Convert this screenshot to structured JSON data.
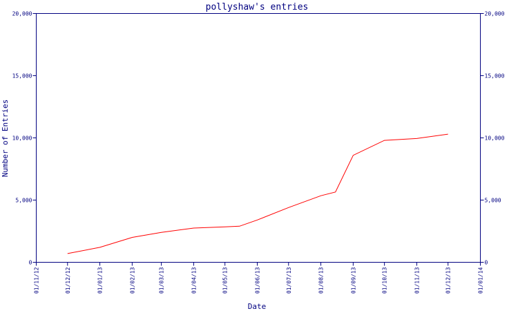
{
  "chart_data": {
    "type": "line",
    "title": "pollyshaw's entries",
    "xlabel": "Date",
    "ylabel": "Number of Entries",
    "ylim": [
      0,
      20000
    ],
    "y_ticks": [
      "0",
      "5,000",
      "10,000",
      "15,000",
      "20,000"
    ],
    "y_tick_values": [
      0,
      5000,
      10000,
      15000,
      20000
    ],
    "x_ticks": [
      "01/11/12",
      "01/12/12",
      "01/01/13",
      "01/02/13",
      "01/03/13",
      "01/04/13",
      "01/05/13",
      "01/06/13",
      "01/07/13",
      "01/08/13",
      "01/09/13",
      "01/10/13",
      "01/11/13",
      "01/12/13",
      "01/01/14"
    ],
    "x_tick_dates": [
      "2012-11-01",
      "2012-12-01",
      "2013-01-01",
      "2013-02-01",
      "2013-03-01",
      "2013-04-01",
      "2013-05-01",
      "2013-06-01",
      "2013-07-01",
      "2013-08-01",
      "2013-09-01",
      "2013-10-01",
      "2013-11-01",
      "2013-12-01",
      "2014-01-01"
    ],
    "xlim": [
      "2012-11-01",
      "2014-01-01"
    ],
    "grid": false,
    "series": [
      {
        "color": "#ff0000",
        "x": [
          "2012-12-01",
          "2013-01-01",
          "2013-02-01",
          "2013-03-01",
          "2013-04-01",
          "2013-05-01",
          "2013-05-15",
          "2013-06-01",
          "2013-07-01",
          "2013-08-01",
          "2013-08-15",
          "2013-09-01",
          "2013-10-01",
          "2013-11-01",
          "2013-12-01"
        ],
        "y": [
          700,
          1200,
          2000,
          2400,
          2750,
          2850,
          2900,
          3400,
          4400,
          5350,
          5650,
          8600,
          9800,
          9950,
          10300
        ]
      }
    ]
  }
}
